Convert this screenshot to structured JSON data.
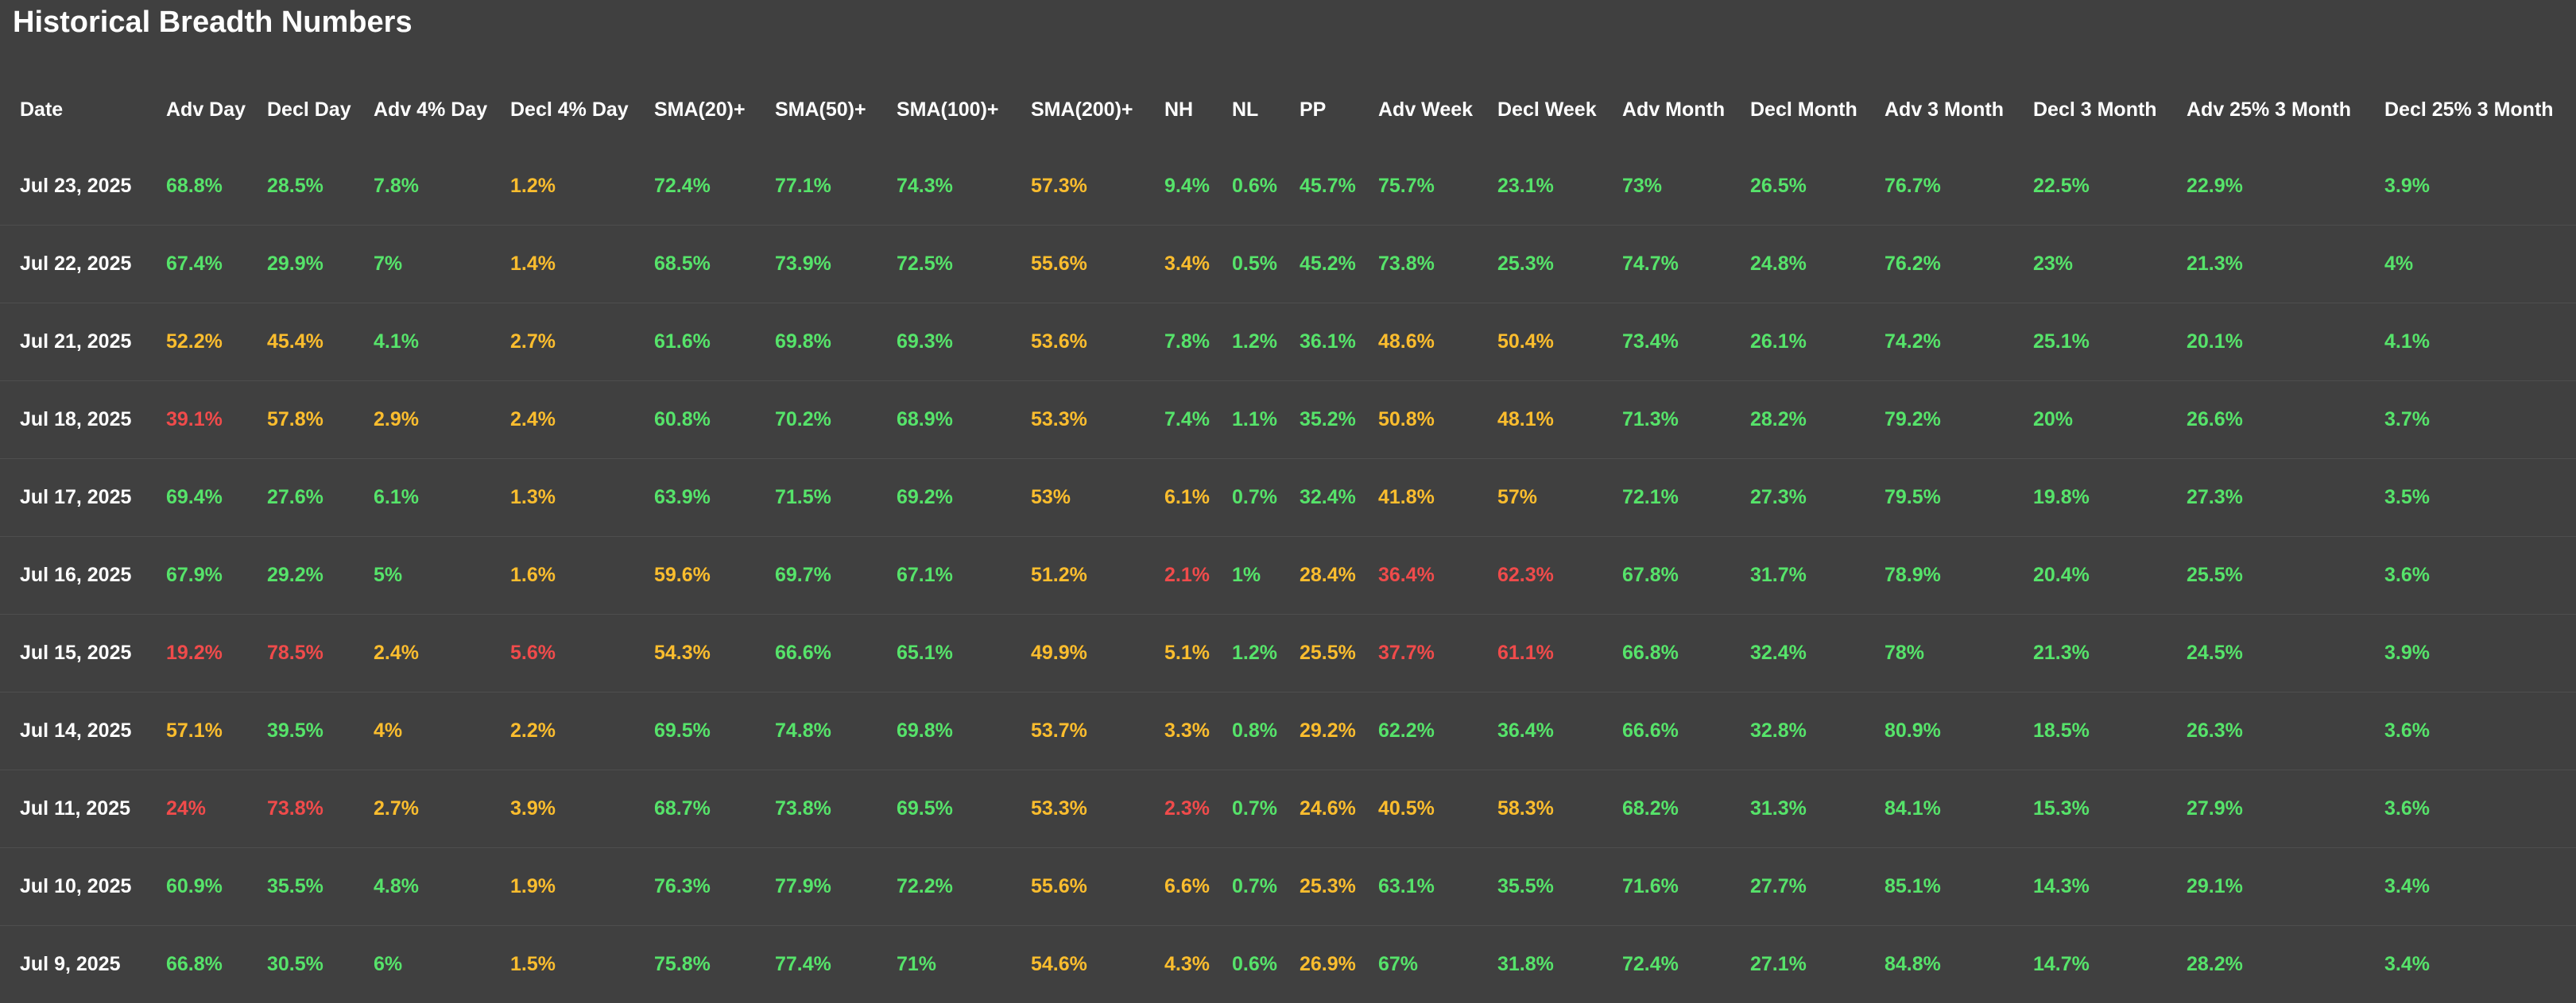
{
  "page": {
    "title": "Historical Breadth Numbers"
  },
  "colors": {
    "background": "#404040",
    "green": "#56e36a",
    "orange": "#fbbd2e",
    "red": "#f04b4b",
    "divider": "#4e4e4e"
  },
  "table": {
    "columns": [
      "Date",
      "Adv Day",
      "Decl Day",
      "Adv 4% Day",
      "Decl 4% Day",
      "SMA(20)+",
      "SMA(50)+",
      "SMA(100)+",
      "SMA(200)+",
      "NH",
      "NL",
      "PP",
      "Adv Week",
      "Decl Week",
      "Adv Month",
      "Decl Month",
      "Adv 3 Month",
      "Decl 3 Month",
      "Adv 25% 3 Month",
      "Decl 25% 3 Month"
    ],
    "rows": [
      {
        "cells": [
          "Jul 23, 2025",
          "68.8%",
          "28.5%",
          "7.8%",
          "1.2%",
          "72.4%",
          "77.1%",
          "74.3%",
          "57.3%",
          "9.4%",
          "0.6%",
          "45.7%",
          "75.7%",
          "23.1%",
          "73%",
          "26.5%",
          "76.7%",
          "22.5%",
          "22.9%",
          "3.9%"
        ],
        "colors": [
          "w",
          "g",
          "g",
          "g",
          "o",
          "g",
          "g",
          "g",
          "o",
          "g",
          "g",
          "g",
          "g",
          "g",
          "g",
          "g",
          "g",
          "g",
          "g",
          "g"
        ]
      },
      {
        "cells": [
          "Jul 22, 2025",
          "67.4%",
          "29.9%",
          "7%",
          "1.4%",
          "68.5%",
          "73.9%",
          "72.5%",
          "55.6%",
          "3.4%",
          "0.5%",
          "45.2%",
          "73.8%",
          "25.3%",
          "74.7%",
          "24.8%",
          "76.2%",
          "23%",
          "21.3%",
          "4%"
        ],
        "colors": [
          "w",
          "g",
          "g",
          "g",
          "o",
          "g",
          "g",
          "g",
          "o",
          "o",
          "g",
          "g",
          "g",
          "g",
          "g",
          "g",
          "g",
          "g",
          "g",
          "g"
        ]
      },
      {
        "cells": [
          "Jul 21, 2025",
          "52.2%",
          "45.4%",
          "4.1%",
          "2.7%",
          "61.6%",
          "69.8%",
          "69.3%",
          "53.6%",
          "7.8%",
          "1.2%",
          "36.1%",
          "48.6%",
          "50.4%",
          "73.4%",
          "26.1%",
          "74.2%",
          "25.1%",
          "20.1%",
          "4.1%"
        ],
        "colors": [
          "w",
          "o",
          "o",
          "g",
          "o",
          "g",
          "g",
          "g",
          "o",
          "g",
          "g",
          "g",
          "o",
          "o",
          "g",
          "g",
          "g",
          "g",
          "g",
          "g"
        ]
      },
      {
        "cells": [
          "Jul 18, 2025",
          "39.1%",
          "57.8%",
          "2.9%",
          "2.4%",
          "60.8%",
          "70.2%",
          "68.9%",
          "53.3%",
          "7.4%",
          "1.1%",
          "35.2%",
          "50.8%",
          "48.1%",
          "71.3%",
          "28.2%",
          "79.2%",
          "20%",
          "26.6%",
          "3.7%"
        ],
        "colors": [
          "w",
          "r",
          "o",
          "o",
          "o",
          "g",
          "g",
          "g",
          "o",
          "g",
          "g",
          "g",
          "o",
          "o",
          "g",
          "g",
          "g",
          "g",
          "g",
          "g"
        ]
      },
      {
        "cells": [
          "Jul 17, 2025",
          "69.4%",
          "27.6%",
          "6.1%",
          "1.3%",
          "63.9%",
          "71.5%",
          "69.2%",
          "53%",
          "6.1%",
          "0.7%",
          "32.4%",
          "41.8%",
          "57%",
          "72.1%",
          "27.3%",
          "79.5%",
          "19.8%",
          "27.3%",
          "3.5%"
        ],
        "colors": [
          "w",
          "g",
          "g",
          "g",
          "o",
          "g",
          "g",
          "g",
          "o",
          "o",
          "g",
          "g",
          "o",
          "o",
          "g",
          "g",
          "g",
          "g",
          "g",
          "g"
        ]
      },
      {
        "cells": [
          "Jul 16, 2025",
          "67.9%",
          "29.2%",
          "5%",
          "1.6%",
          "59.6%",
          "69.7%",
          "67.1%",
          "51.2%",
          "2.1%",
          "1%",
          "28.4%",
          "36.4%",
          "62.3%",
          "67.8%",
          "31.7%",
          "78.9%",
          "20.4%",
          "25.5%",
          "3.6%"
        ],
        "colors": [
          "w",
          "g",
          "g",
          "g",
          "o",
          "o",
          "g",
          "g",
          "o",
          "r",
          "g",
          "o",
          "r",
          "r",
          "g",
          "g",
          "g",
          "g",
          "g",
          "g"
        ]
      },
      {
        "cells": [
          "Jul 15, 2025",
          "19.2%",
          "78.5%",
          "2.4%",
          "5.6%",
          "54.3%",
          "66.6%",
          "65.1%",
          "49.9%",
          "5.1%",
          "1.2%",
          "25.5%",
          "37.7%",
          "61.1%",
          "66.8%",
          "32.4%",
          "78%",
          "21.3%",
          "24.5%",
          "3.9%"
        ],
        "colors": [
          "w",
          "r",
          "r",
          "o",
          "r",
          "o",
          "g",
          "g",
          "o",
          "o",
          "g",
          "o",
          "r",
          "r",
          "g",
          "g",
          "g",
          "g",
          "g",
          "g"
        ]
      },
      {
        "cells": [
          "Jul 14, 2025",
          "57.1%",
          "39.5%",
          "4%",
          "2.2%",
          "69.5%",
          "74.8%",
          "69.8%",
          "53.7%",
          "3.3%",
          "0.8%",
          "29.2%",
          "62.2%",
          "36.4%",
          "66.6%",
          "32.8%",
          "80.9%",
          "18.5%",
          "26.3%",
          "3.6%"
        ],
        "colors": [
          "w",
          "o",
          "g",
          "o",
          "o",
          "g",
          "g",
          "g",
          "o",
          "o",
          "g",
          "o",
          "g",
          "g",
          "g",
          "g",
          "g",
          "g",
          "g",
          "g"
        ]
      },
      {
        "cells": [
          "Jul 11, 2025",
          "24%",
          "73.8%",
          "2.7%",
          "3.9%",
          "68.7%",
          "73.8%",
          "69.5%",
          "53.3%",
          "2.3%",
          "0.7%",
          "24.6%",
          "40.5%",
          "58.3%",
          "68.2%",
          "31.3%",
          "84.1%",
          "15.3%",
          "27.9%",
          "3.6%"
        ],
        "colors": [
          "w",
          "r",
          "r",
          "o",
          "o",
          "g",
          "g",
          "g",
          "o",
          "r",
          "g",
          "o",
          "o",
          "o",
          "g",
          "g",
          "g",
          "g",
          "g",
          "g"
        ]
      },
      {
        "cells": [
          "Jul 10, 2025",
          "60.9%",
          "35.5%",
          "4.8%",
          "1.9%",
          "76.3%",
          "77.9%",
          "72.2%",
          "55.6%",
          "6.6%",
          "0.7%",
          "25.3%",
          "63.1%",
          "35.5%",
          "71.6%",
          "27.7%",
          "85.1%",
          "14.3%",
          "29.1%",
          "3.4%"
        ],
        "colors": [
          "w",
          "g",
          "g",
          "g",
          "o",
          "g",
          "g",
          "g",
          "o",
          "o",
          "g",
          "o",
          "g",
          "g",
          "g",
          "g",
          "g",
          "g",
          "g",
          "g"
        ]
      },
      {
        "cells": [
          "Jul 9, 2025",
          "66.8%",
          "30.5%",
          "6%",
          "1.5%",
          "75.8%",
          "77.4%",
          "71%",
          "54.6%",
          "4.3%",
          "0.6%",
          "26.9%",
          "67%",
          "31.8%",
          "72.4%",
          "27.1%",
          "84.8%",
          "14.7%",
          "28.2%",
          "3.4%"
        ],
        "colors": [
          "w",
          "g",
          "g",
          "g",
          "o",
          "g",
          "g",
          "g",
          "o",
          "o",
          "g",
          "o",
          "g",
          "g",
          "g",
          "g",
          "g",
          "g",
          "g",
          "g"
        ]
      }
    ]
  }
}
